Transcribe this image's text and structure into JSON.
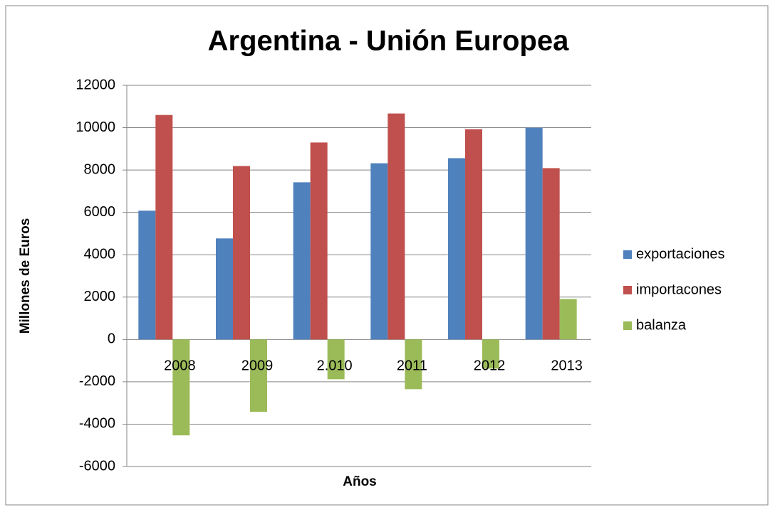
{
  "chart_data": {
    "type": "bar",
    "title": "Argentina - Unión Europea",
    "x_label": "Años",
    "y_label": "Millones de Euros",
    "categories": [
      "2008",
      "2009",
      "2.010",
      "2011",
      "2012",
      "2013"
    ],
    "series": [
      {
        "name": "exportaciones",
        "color": "#4f81bd",
        "values": [
          6080,
          4770,
          7420,
          8320,
          8560,
          10000
        ]
      },
      {
        "name": "importacones",
        "color": "#c0504d",
        "values": [
          10600,
          8190,
          9300,
          10670,
          9930,
          8090
        ]
      },
      {
        "name": "balanza",
        "color": "#9bbb59",
        "values": [
          -4530,
          -3420,
          -1880,
          -2350,
          -1380,
          1910
        ]
      }
    ],
    "ylim": [
      -6000,
      12000
    ],
    "yticks": [
      -6000,
      -4000,
      -2000,
      0,
      2000,
      4000,
      6000,
      8000,
      10000,
      12000
    ],
    "grid": true,
    "legend": "right"
  }
}
